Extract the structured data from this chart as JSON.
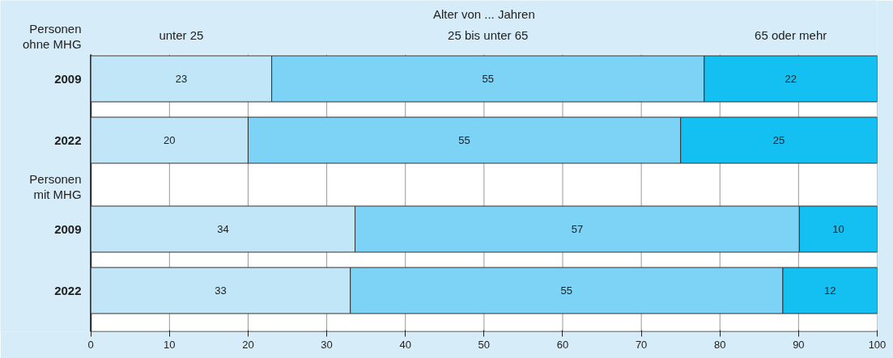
{
  "chart_data": {
    "type": "bar",
    "orientation": "horizontal",
    "stacked": true,
    "categories": [
      "2009",
      "2022",
      null,
      "2009",
      "2022"
    ],
    "legend_title": "Alter von ... Jahren",
    "annotations": [
      "Personen ohne MHG",
      "Personen mit MHG"
    ],
    "series": [
      {
        "name": "unter 25",
        "color": "#c0e6f7",
        "values": [
          23,
          20,
          null,
          33.6,
          33
        ],
        "value_labels": [
          "23",
          "20",
          null,
          "34",
          "33"
        ]
      },
      {
        "name": "25 bis unter 65",
        "color": "#7dd3f5",
        "values": [
          55,
          55,
          null,
          56.5,
          55
        ],
        "value_labels": [
          "55",
          "55",
          null,
          "57",
          "55"
        ]
      },
      {
        "name": "65 oder mehr",
        "color": "#14c0f1",
        "values": [
          22,
          25,
          null,
          9.9,
          12
        ],
        "value_labels": [
          "22",
          "25",
          null,
          "10",
          "12"
        ]
      }
    ],
    "xlim": [
      0,
      100
    ],
    "xticks": [
      0,
      10,
      20,
      30,
      40,
      50,
      60,
      70,
      80,
      90,
      100
    ],
    "grid": "x"
  }
}
